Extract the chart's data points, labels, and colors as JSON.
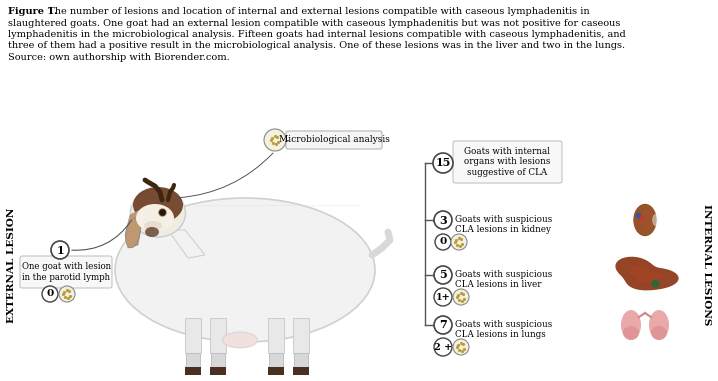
{
  "figure_title_bold": "Figure 1.",
  "figure_title_rest": " The number of lesions and location of internal and external lesions compatible with caseous lymphadenitis in\nslaughtered goats. One goat had an external lesion compatible with caseous lymphadenitis but was not positive for caseous\nlymphadenitis in the microbiological analysis. Fifteen goats had internal lesions compatible with caseous lymphadenitis, and\nthree of them had a positive result in the microbiological analysis. One of these lesions was in the liver and two in the lungs.\nSource: own authorship with Biorender.com.",
  "bg_color": "#ffffff",
  "left_label": "EXTERNAL LESION",
  "right_label": "INTERNAL LESIONS",
  "microbio_label": "Microbiological analysis",
  "external_number": "1",
  "external_text": "One goat with lesion\nin the parotid lymph",
  "external_micro_number": "0",
  "internal_top_number": "15",
  "internal_top_text": "Goats with internal\norgans with lesions\nsuggestive of CLA",
  "kidney_number": "3",
  "kidney_text": "Goats with suspicious\nCLA lesions in kidney",
  "kidney_micro": "0",
  "liver_number": "5",
  "liver_text": "Goats with suspicious\nCLA lesions in liver",
  "liver_micro": "1+",
  "lungs_number": "7",
  "lungs_text": "Goats with suspicious\nCLA lesions in lungs",
  "lungs_micro": "2 +",
  "text_color": "#1a1a1a",
  "font_size_caption": 7.0,
  "font_size_labels": 6.5,
  "font_size_numbers": 8.5,
  "font_size_side": 7.5,
  "caption_lines": [
    [
      "bold",
      "Figure 1.",
      "normal",
      " The number of lesions and location of internal and external lesions compatible with caseous lymphadenitis in"
    ],
    [
      "normal",
      "slaughtered goats. One goat had an external lesion compatible with caseous lymphadenitis but was not positive for caseous"
    ],
    [
      "normal",
      "lymphadenitis in the microbiological analysis. Fifteen goats had internal lesions compatible with caseous lymphadenitis, and"
    ],
    [
      "normal",
      "three of them had a positive result in the microbiological analysis. One of these lesions was in the liver and two in the lungs."
    ],
    [
      "normal",
      "Source: own authorship with Biorender.com."
    ]
  ]
}
